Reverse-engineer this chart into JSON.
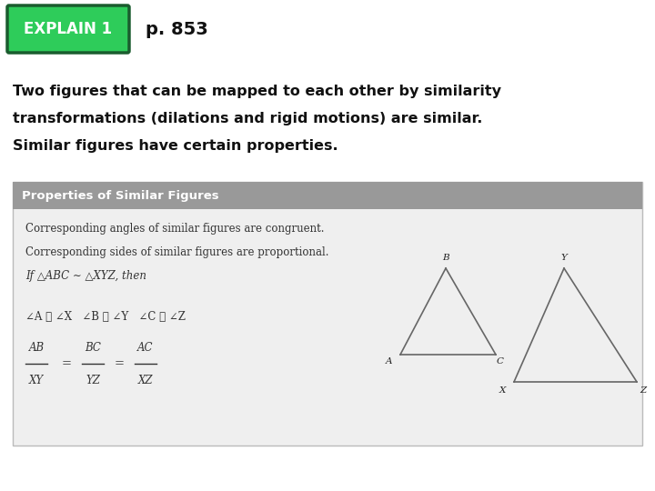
{
  "bg_color": "#ffffff",
  "explain_label": "EXPLAIN 1",
  "explain_bg": "#2ecc5a",
  "explain_border": "#1a5c2e",
  "explain_text_color": "#ffffff",
  "page_label": "p. 853",
  "main_text_line1": "Two figures that can be mapped to each other by similarity",
  "main_text_line2": "transformations (dilations and rigid motions) are similar.",
  "main_text_line3": "Similar figures have certain properties.",
  "box_bg": "#efefef",
  "box_header_bg": "#999999",
  "box_header_text": "Properties of Similar Figures",
  "box_header_text_color": "#ffffff",
  "box_border": "#bbbbbb",
  "content_line1": "Corresponding angles of similar figures are congruent.",
  "content_line2": "Corresponding sides of similar figures are proportional.",
  "content_line3": "If △ABC ∼ △XYZ, then",
  "content_line4": "∠A ≅ ∠X   ∠B ≅ ∠Y   ∠C ≅ ∠Z",
  "frac1_num": "AB",
  "frac1_den": "XY",
  "frac2_num": "BC",
  "frac2_den": "YZ",
  "frac3_num": "AC",
  "frac3_den": "XZ",
  "triangle_color": "#666666",
  "label_fontsize": 7.5,
  "content_fontsize": 8.5,
  "header_fontsize": 9.5,
  "main_fontsize": 11.5
}
